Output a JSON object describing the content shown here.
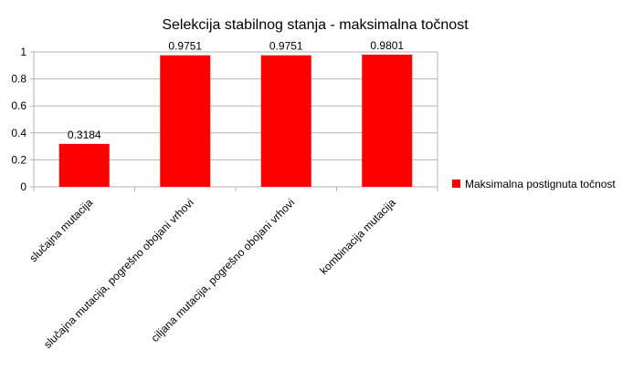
{
  "chart_data": {
    "type": "bar",
    "title": "Selekcija stabilnog stanja - maksimalna točnost",
    "xlabel": "",
    "ylabel": "",
    "categories": [
      "slučajna mutacija",
      "slučajna mutacija, pogrešno obojani vrhovi",
      "ciljana mutacija, pogrešno obojani vrhovi",
      "kombinacija mutacija"
    ],
    "series": [
      {
        "name": "Maksimalna postignuta točnost",
        "values": [
          0.3184,
          0.9751,
          0.9751,
          0.9801
        ],
        "labels": [
          "0.3184",
          "0.9751",
          "0.9751",
          "0.9801"
        ],
        "color": "#ff0000"
      }
    ],
    "ylim": [
      0,
      1
    ],
    "yticks": [
      "0",
      "0.2",
      "0.4",
      "0.6",
      "0.8",
      "1"
    ],
    "grid": true,
    "legend": "right"
  }
}
